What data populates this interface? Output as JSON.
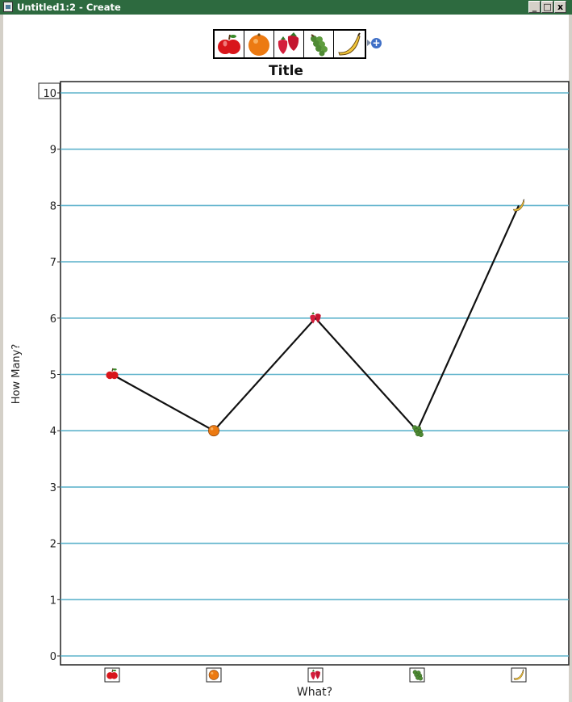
{
  "window": {
    "title": "Untitled1:2 - Create",
    "minimize_label": "_",
    "restore_label": "□",
    "close_label": "x"
  },
  "palette": {
    "items": [
      {
        "name": "apple",
        "icon": "apple-icon"
      },
      {
        "name": "orange",
        "icon": "orange-icon"
      },
      {
        "name": "strawberry",
        "icon": "strawberry-icon"
      },
      {
        "name": "grapes",
        "icon": "grapes-icon"
      },
      {
        "name": "banana",
        "icon": "banana-icon"
      }
    ],
    "add_label": "+"
  },
  "colors": {
    "titlebar": "#2d6a3f",
    "gridline": "#5fb3cc",
    "line": "#111111",
    "apple": "#d8161b",
    "orange": "#ec7a12",
    "strawberry": "#d41f3c",
    "grapes": "#4f8a34",
    "banana": "#f2c63a"
  },
  "chart_data": {
    "type": "line",
    "title": "Title",
    "xlabel": "What?",
    "ylabel": "How Many?",
    "categories": [
      "apple",
      "orange",
      "strawberry",
      "grapes",
      "banana"
    ],
    "values": [
      5,
      4,
      6,
      4,
      8
    ],
    "ylim": [
      0,
      10
    ],
    "yticks": [
      "0",
      "1",
      "2",
      "3",
      "4",
      "5",
      "6",
      "7",
      "8",
      "9",
      "10"
    ],
    "grid": true,
    "legend": "none"
  }
}
